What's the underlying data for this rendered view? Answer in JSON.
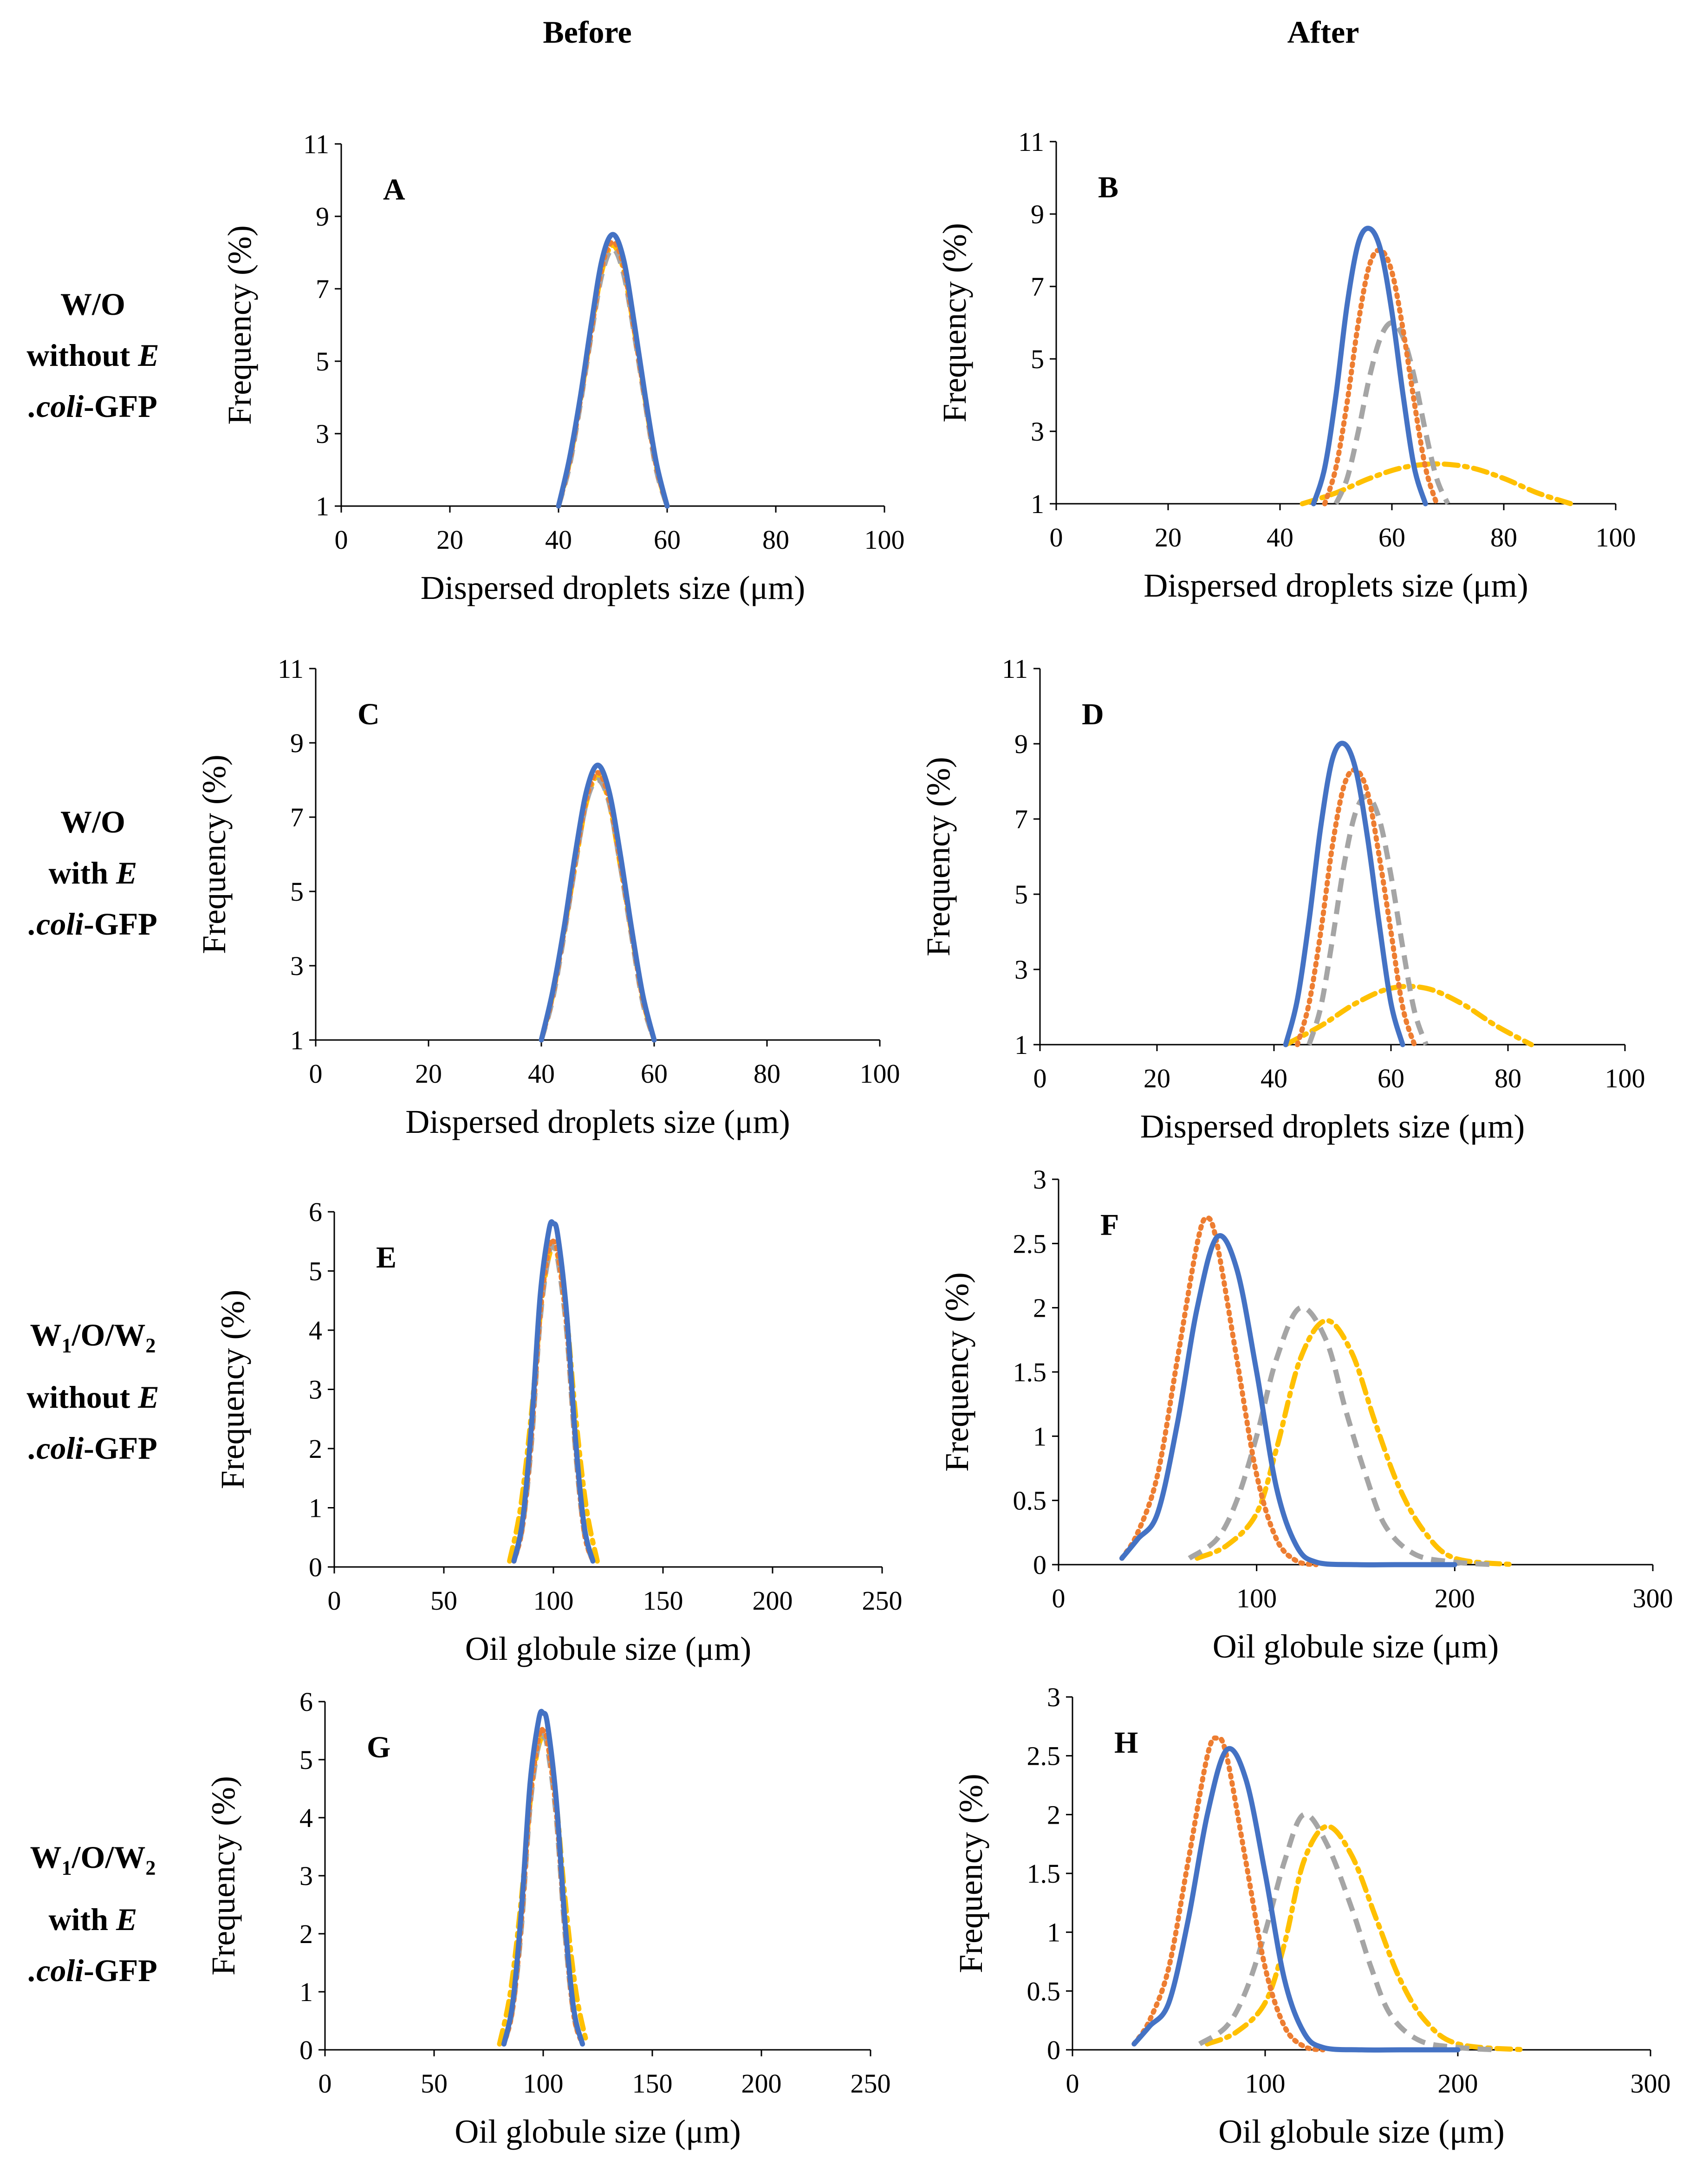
{
  "column_headers": {
    "before": "Before",
    "after": "After"
  },
  "row_labels": {
    "row1": {
      "line1": "W/O",
      "line2_prefix": "without ",
      "line2_italic": "E",
      "line3_italic": ".coli",
      "line3_suffix": "-GFP"
    },
    "row2": {
      "line1": "W/O",
      "line2_prefix": "with ",
      "line2_italic": "E",
      "line3_italic": ".coli",
      "line3_suffix": "-GFP"
    },
    "row3": {
      "w1": "W",
      "sub1": "1",
      "mid": "/O/W",
      "sub2": "2",
      "line2_prefix": "without ",
      "line2_italic": "E",
      "line3_italic": ".coli",
      "line3_suffix": "-GFP"
    },
    "row4": {
      "w1": "W",
      "sub1": "1",
      "mid": "/O/W",
      "sub2": "2",
      "line2_prefix": "with ",
      "line2_italic": "E",
      "line3_italic": ".coli",
      "line3_suffix": "-GFP"
    }
  },
  "series_styles": [
    {
      "color": "#4472C4",
      "dash": "solid"
    },
    {
      "color": "#ED7D31",
      "dash": "dotted"
    },
    {
      "color": "#A5A5A5",
      "dash": "dashed"
    },
    {
      "color": "#FFC000",
      "dash": "dashdot"
    }
  ],
  "chart_data": [
    {
      "id": "A",
      "type": "line",
      "letter": "A",
      "xlabel": "Dispersed droplets size (μm)",
      "ylabel": "Frequency (%)",
      "xlim": [
        0,
        100
      ],
      "ylim": [
        1,
        11
      ],
      "xticks": [
        0,
        20,
        40,
        60,
        80,
        100
      ],
      "yticks": [
        1,
        3,
        5,
        7,
        9,
        11
      ],
      "series": [
        {
          "x": [
            40,
            42,
            44,
            46,
            48,
            50,
            52,
            54,
            56,
            58,
            60
          ],
          "y": [
            1.0,
            2.3,
            4.0,
            6.0,
            7.8,
            8.5,
            7.8,
            6.0,
            4.0,
            2.2,
            1.0
          ]
        },
        {
          "x": [
            40,
            42,
            44,
            46,
            48,
            50,
            52,
            54,
            56,
            58,
            60
          ],
          "y": [
            1.0,
            2.2,
            3.9,
            5.8,
            7.6,
            8.3,
            7.6,
            5.8,
            3.9,
            2.1,
            1.0
          ]
        },
        {
          "x": [
            40,
            42,
            44,
            46,
            48,
            50,
            52,
            54,
            56,
            58,
            60
          ],
          "y": [
            1.0,
            2.1,
            3.8,
            5.7,
            7.4,
            8.1,
            7.4,
            5.7,
            3.8,
            2.0,
            1.0
          ]
        },
        {
          "x": [
            40,
            42,
            44,
            46,
            48,
            50,
            52,
            54,
            56,
            58,
            60
          ],
          "y": [
            1.0,
            2.2,
            3.9,
            5.8,
            7.5,
            8.2,
            7.5,
            5.8,
            3.9,
            2.1,
            1.0
          ]
        }
      ]
    },
    {
      "id": "B",
      "type": "line",
      "letter": "B",
      "xlabel": "Dispersed droplets size (μm)",
      "ylabel": "Frequency (%)",
      "xlim": [
        0,
        100
      ],
      "ylim": [
        1,
        11
      ],
      "xticks": [
        0,
        20,
        40,
        60,
        80,
        100
      ],
      "yticks": [
        1,
        3,
        5,
        7,
        9,
        11
      ],
      "series": [
        {
          "x": [
            46,
            48,
            50,
            52,
            54,
            56,
            58,
            60,
            62,
            64,
            66
          ],
          "y": [
            1.0,
            2.0,
            4.0,
            6.5,
            8.2,
            8.6,
            8.0,
            6.3,
            4.0,
            2.0,
            1.0
          ]
        },
        {
          "x": [
            48,
            50,
            52,
            54,
            56,
            58,
            60,
            62,
            64,
            66,
            68
          ],
          "y": [
            1.0,
            2.0,
            3.8,
            6.0,
            7.6,
            8.0,
            7.4,
            5.8,
            3.8,
            2.0,
            1.0
          ]
        },
        {
          "x": [
            50,
            52,
            54,
            56,
            58,
            60,
            62,
            64,
            66,
            68,
            70
          ],
          "y": [
            1.0,
            1.7,
            3.0,
            4.5,
            5.6,
            6.0,
            5.6,
            4.5,
            3.0,
            1.7,
            1.0
          ]
        },
        {
          "x": [
            44,
            50,
            56,
            62,
            68,
            74,
            80,
            86,
            92
          ],
          "y": [
            1.0,
            1.3,
            1.7,
            2.0,
            2.1,
            2.0,
            1.7,
            1.3,
            1.0
          ]
        }
      ]
    },
    {
      "id": "C",
      "type": "line",
      "letter": "C",
      "xlabel": "Dispersed droplets size (μm)",
      "ylabel": "Frequency (%)",
      "xlim": [
        0,
        100
      ],
      "ylim": [
        1,
        11
      ],
      "xticks": [
        0,
        20,
        40,
        60,
        80,
        100
      ],
      "yticks": [
        1,
        3,
        5,
        7,
        9,
        11
      ],
      "series": [
        {
          "x": [
            40,
            42,
            44,
            46,
            48,
            50,
            52,
            54,
            56,
            58,
            60
          ],
          "y": [
            1.0,
            2.3,
            4.0,
            6.0,
            7.7,
            8.4,
            7.7,
            6.0,
            4.0,
            2.2,
            1.0
          ]
        },
        {
          "x": [
            40,
            42,
            44,
            46,
            48,
            50,
            52,
            54,
            56,
            58,
            60
          ],
          "y": [
            1.0,
            2.2,
            3.9,
            5.8,
            7.5,
            8.2,
            7.5,
            5.8,
            3.9,
            2.1,
            1.0
          ]
        },
        {
          "x": [
            40,
            42,
            44,
            46,
            48,
            50,
            52,
            54,
            56,
            58,
            60
          ],
          "y": [
            1.0,
            2.1,
            3.8,
            5.7,
            7.4,
            8.0,
            7.4,
            5.7,
            3.8,
            2.0,
            1.0
          ]
        },
        {
          "x": [
            40,
            42,
            44,
            46,
            48,
            50,
            52,
            54,
            56,
            58,
            60
          ],
          "y": [
            1.0,
            2.2,
            3.9,
            5.7,
            7.4,
            8.1,
            7.4,
            5.7,
            3.9,
            2.1,
            1.0
          ]
        }
      ]
    },
    {
      "id": "D",
      "type": "line",
      "letter": "D",
      "xlabel": "Dispersed droplets size (μm)",
      "ylabel": "Frequency (%)",
      "xlim": [
        0,
        100
      ],
      "ylim": [
        1,
        11
      ],
      "xticks": [
        0,
        20,
        40,
        60,
        80,
        100
      ],
      "yticks": [
        1,
        3,
        5,
        7,
        9,
        11
      ],
      "series": [
        {
          "x": [
            42,
            44,
            46,
            48,
            50,
            52,
            54,
            56,
            58,
            60,
            62
          ],
          "y": [
            1.0,
            2.2,
            4.3,
            6.8,
            8.6,
            9.0,
            8.3,
            6.5,
            4.2,
            2.1,
            1.0
          ]
        },
        {
          "x": [
            44,
            46,
            48,
            50,
            52,
            54,
            56,
            58,
            60,
            62,
            64
          ],
          "y": [
            1.0,
            2.1,
            4.0,
            6.3,
            7.9,
            8.3,
            7.7,
            6.0,
            4.0,
            2.0,
            1.0
          ]
        },
        {
          "x": [
            46,
            48,
            50,
            52,
            54,
            56,
            58,
            60,
            62,
            64,
            66
          ],
          "y": [
            1.0,
            2.0,
            3.8,
            5.8,
            7.2,
            7.6,
            7.0,
            5.5,
            3.6,
            1.9,
            1.0
          ]
        },
        {
          "x": [
            42,
            48,
            54,
            60,
            66,
            72,
            78,
            84
          ],
          "y": [
            1.0,
            1.5,
            2.1,
            2.5,
            2.5,
            2.1,
            1.5,
            1.0
          ]
        }
      ]
    },
    {
      "id": "E",
      "type": "line",
      "letter": "E",
      "xlabel": "Oil globule size (μm)",
      "ylabel": "Frequency (%)",
      "xlim": [
        0,
        250
      ],
      "ylim": [
        0,
        6
      ],
      "xticks": [
        0,
        50,
        100,
        150,
        200,
        250
      ],
      "yticks": [
        0,
        1,
        2,
        3,
        4,
        5,
        6
      ],
      "series": [
        {
          "x": [
            82,
            86,
            90,
            94,
            98,
            100,
            102,
            106,
            110,
            114,
            118
          ],
          "y": [
            0.1,
            0.8,
            2.4,
            4.6,
            5.7,
            5.8,
            5.6,
            4.3,
            2.2,
            0.7,
            0.1
          ]
        },
        {
          "x": [
            82,
            86,
            90,
            94,
            98,
            100,
            102,
            106,
            110,
            114,
            118
          ],
          "y": [
            0.1,
            0.7,
            2.2,
            4.3,
            5.4,
            5.5,
            5.3,
            4.1,
            2.1,
            0.6,
            0.1
          ]
        },
        {
          "x": [
            82,
            86,
            90,
            94,
            98,
            100,
            102,
            106,
            110,
            114,
            118
          ],
          "y": [
            0.1,
            0.7,
            2.1,
            4.2,
            5.3,
            5.4,
            5.2,
            4.0,
            2.0,
            0.6,
            0.1
          ]
        },
        {
          "x": [
            80,
            85,
            90,
            95,
            100,
            105,
            110,
            115,
            120
          ],
          "y": [
            0.1,
            1.0,
            2.6,
            4.6,
            5.4,
            4.6,
            2.6,
            1.0,
            0.1
          ]
        }
      ]
    },
    {
      "id": "F",
      "type": "line",
      "letter": "F",
      "xlabel": "Oil globule size (μm)",
      "ylabel": "Frequency (%)",
      "xlim": [
        0,
        300
      ],
      "ylim": [
        0,
        3
      ],
      "xticks": [
        0,
        100,
        200,
        300
      ],
      "yticks": [
        0,
        0.5,
        1,
        1.5,
        2,
        2.5,
        3
      ],
      "series": [
        {
          "x": [
            32,
            40,
            50,
            60,
            70,
            80,
            90,
            100,
            110,
            120,
            130,
            150,
            170,
            200
          ],
          "y": [
            0.05,
            0.2,
            0.4,
            1.1,
            2.0,
            2.55,
            2.3,
            1.5,
            0.6,
            0.15,
            0.02,
            0.0,
            0.0,
            0.0
          ]
        },
        {
          "x": [
            32,
            40,
            50,
            60,
            70,
            75,
            80,
            90,
            100,
            110,
            120,
            130
          ],
          "y": [
            0.05,
            0.25,
            0.7,
            1.6,
            2.5,
            2.7,
            2.5,
            1.6,
            0.7,
            0.2,
            0.03,
            0.0
          ]
        },
        {
          "x": [
            66,
            80,
            90,
            100,
            110,
            122,
            135,
            145,
            155,
            165,
            180,
            200,
            220
          ],
          "y": [
            0.05,
            0.2,
            0.5,
            1.0,
            1.6,
            2.0,
            1.75,
            1.2,
            0.7,
            0.3,
            0.08,
            0.02,
            0.0
          ]
        },
        {
          "x": [
            70,
            85,
            100,
            110,
            122,
            135,
            148,
            160,
            172,
            185,
            200,
            230
          ],
          "y": [
            0.05,
            0.15,
            0.4,
            0.9,
            1.6,
            1.9,
            1.65,
            1.1,
            0.6,
            0.25,
            0.05,
            0.0
          ]
        }
      ]
    },
    {
      "id": "G",
      "type": "line",
      "letter": "G",
      "xlabel": "Oil globule size (μm)",
      "ylabel": "Frequency (%)",
      "xlim": [
        0,
        250
      ],
      "ylim": [
        0,
        6
      ],
      "xticks": [
        0,
        50,
        100,
        150,
        200,
        250
      ],
      "yticks": [
        0,
        1,
        2,
        3,
        4,
        5,
        6
      ],
      "series": [
        {
          "x": [
            82,
            86,
            90,
            94,
            98,
            100,
            102,
            106,
            110,
            114,
            118
          ],
          "y": [
            0.1,
            0.8,
            2.4,
            4.6,
            5.7,
            5.8,
            5.6,
            4.3,
            2.2,
            0.7,
            0.1
          ]
        },
        {
          "x": [
            82,
            86,
            90,
            94,
            98,
            100,
            102,
            106,
            110,
            114,
            118
          ],
          "y": [
            0.1,
            0.7,
            2.2,
            4.3,
            5.4,
            5.5,
            5.3,
            4.1,
            2.1,
            0.6,
            0.1
          ]
        },
        {
          "x": [
            82,
            86,
            90,
            94,
            98,
            100,
            102,
            106,
            110,
            114,
            118
          ],
          "y": [
            0.1,
            0.7,
            2.1,
            4.2,
            5.3,
            5.4,
            5.2,
            4.0,
            2.0,
            0.6,
            0.1
          ]
        },
        {
          "x": [
            80,
            85,
            90,
            95,
            100,
            105,
            110,
            115,
            120
          ],
          "y": [
            0.1,
            1.0,
            2.6,
            4.6,
            5.4,
            4.6,
            2.6,
            1.0,
            0.1
          ]
        }
      ]
    },
    {
      "id": "H",
      "type": "line",
      "letter": "H",
      "xlabel": "Oil globule size (μm)",
      "ylabel": "Frequency (%)",
      "xlim": [
        0,
        300
      ],
      "ylim": [
        0,
        3
      ],
      "xticks": [
        0,
        100,
        200,
        300
      ],
      "yticks": [
        0,
        0.5,
        1,
        1.5,
        2,
        2.5,
        3
      ],
      "series": [
        {
          "x": [
            32,
            40,
            50,
            60,
            70,
            80,
            90,
            100,
            110,
            120,
            130,
            150,
            170,
            200
          ],
          "y": [
            0.05,
            0.2,
            0.4,
            1.1,
            2.0,
            2.55,
            2.3,
            1.5,
            0.6,
            0.15,
            0.02,
            0.0,
            0.0,
            0.0
          ]
        },
        {
          "x": [
            32,
            40,
            50,
            60,
            70,
            75,
            80,
            90,
            100,
            110,
            120,
            130
          ],
          "y": [
            0.05,
            0.25,
            0.7,
            1.6,
            2.5,
            2.65,
            2.5,
            1.6,
            0.7,
            0.2,
            0.03,
            0.0
          ]
        },
        {
          "x": [
            66,
            80,
            90,
            100,
            110,
            120,
            132,
            145,
            155,
            165,
            180,
            200,
            220
          ],
          "y": [
            0.05,
            0.2,
            0.5,
            1.0,
            1.6,
            2.0,
            1.75,
            1.2,
            0.7,
            0.3,
            0.08,
            0.02,
            0.0
          ]
        },
        {
          "x": [
            70,
            85,
            100,
            110,
            120,
            132,
            145,
            158,
            170,
            183,
            200,
            235
          ],
          "y": [
            0.05,
            0.15,
            0.4,
            0.9,
            1.6,
            1.9,
            1.65,
            1.1,
            0.6,
            0.25,
            0.05,
            0.0
          ]
        }
      ]
    }
  ]
}
